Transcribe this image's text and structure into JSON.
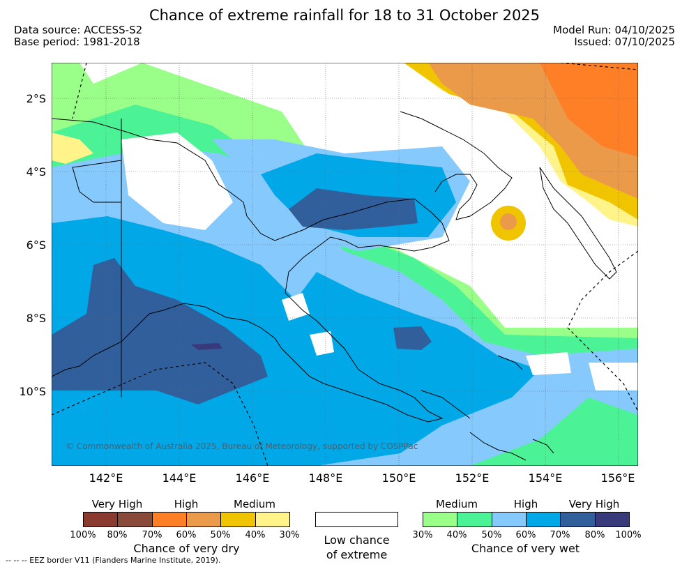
{
  "title": "Chance of extreme rainfall for 18 to 31 October 2025",
  "meta": {
    "data_source": "Data source: ACCESS-S2",
    "base_period": "Base period: 1981-2018",
    "model_run": "Model Run: 04/10/2025",
    "issued": "Issued: 07/10/2025"
  },
  "axes": {
    "lat_labels": [
      "2°S",
      "4°S",
      "6°S",
      "8°S",
      "10°S"
    ],
    "lon_labels": [
      "142°E",
      "144°E",
      "146°E",
      "148°E",
      "150°E",
      "152°E",
      "154°E",
      "156°E"
    ]
  },
  "copyright": "© Commonwealth of Australia 2025, Bureau of Meteorology, supported by COSPPac",
  "legend": {
    "dry": {
      "levels": [
        "Very High",
        "High",
        "Medium"
      ],
      "caption": "Chance of very dry",
      "percents": [
        "100%",
        "80%",
        "70%",
        "60%",
        "50%",
        "40%",
        "30%"
      ]
    },
    "low": {
      "caption_line1": "Low chance",
      "caption_line2": "of extreme"
    },
    "wet": {
      "levels": [
        "Medium",
        "High",
        "Very High"
      ],
      "caption": "Chance of very wet",
      "percents": [
        "30%",
        "40%",
        "50%",
        "60%",
        "70%",
        "80%",
        "100%"
      ]
    }
  },
  "colors": {
    "dry": [
      "#8b3a2f",
      "#8a4a3a",
      "#ff7f27",
      "#eb9a4a",
      "#f0c500",
      "#fff38a"
    ],
    "low": "#ffffff",
    "wet": [
      "#99ff88",
      "#4cf296",
      "#85c9fd",
      "#00a8e8",
      "#315f9c",
      "#393a7c"
    ]
  },
  "footnote": "--  --  -- EEZ border V11 (Flanders Marine Institute, 2019)."
}
